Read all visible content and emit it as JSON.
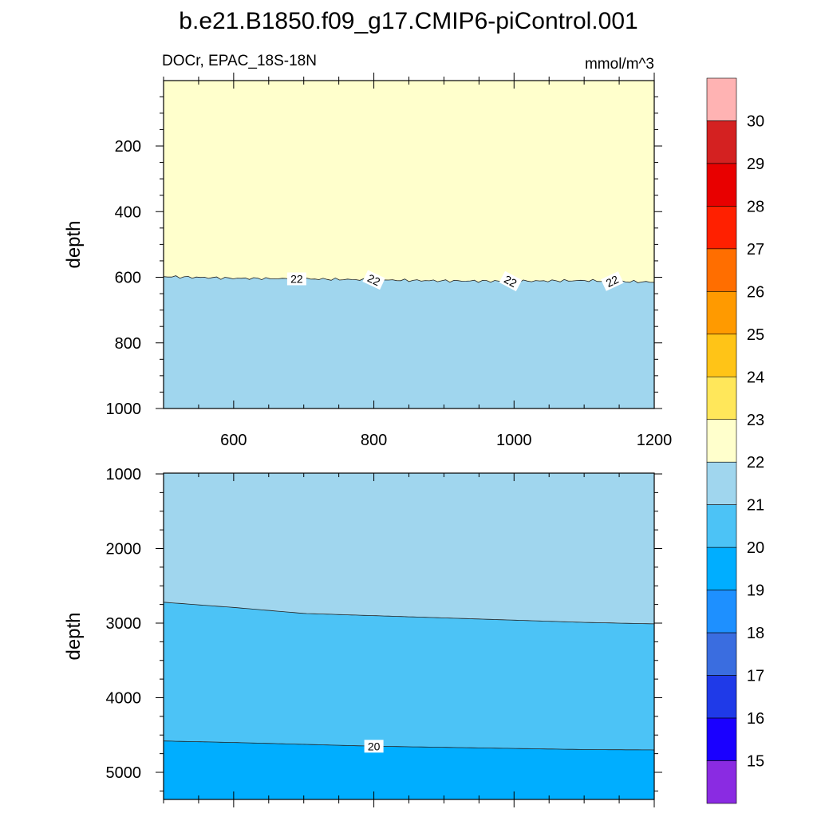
{
  "chart_data": {
    "type": "contour",
    "title": "b.e21.B1850.f09_g17.CMIP6-piControl.001",
    "subtitle_left": "DOCr, EPAC_18S-18N",
    "subtitle_right": "mmol/m^3",
    "colorbar": {
      "colors": [
        "#8a2be2",
        "#1a00ff",
        "#1f3ae8",
        "#3a6de0",
        "#1e90ff",
        "#00aeff",
        "#4cc3f6",
        "#a0d6ee",
        "#ffffcc",
        "#ffe75a",
        "#ffc417",
        "#ff9a00",
        "#ff6e00",
        "#ff2000",
        "#e80000",
        "#d42121",
        "#ffb3b3"
      ],
      "labels": [
        "15",
        "16",
        "17",
        "18",
        "19",
        "20",
        "21",
        "22",
        "23",
        "24",
        "25",
        "26",
        "27",
        "28",
        "29",
        "30"
      ]
    },
    "panels": [
      {
        "name": "upper",
        "ylabel": "depth",
        "xlim": [
          500,
          1200
        ],
        "ylim": [
          0,
          1000
        ],
        "y_inverted": true,
        "xticks": [
          "600",
          "800",
          "1000",
          "1200"
        ],
        "yticks": [
          "200",
          "400",
          "600",
          "800",
          "1000"
        ],
        "ytick_values": [
          200,
          400,
          600,
          800,
          1000
        ],
        "regions": [
          {
            "range": "22-23",
            "color": "#ffffcc"
          },
          {
            "range": "21-22",
            "color": "#a0d6ee"
          }
        ],
        "contours": [
          {
            "level": 22,
            "x": [
              500,
              600,
              700,
              800,
              900,
              1000,
              1100,
              1200
            ],
            "depth": [
              598,
              603,
              605,
              608,
              611,
              612,
              610,
              615
            ],
            "labels": [
              {
                "x": 690,
                "text": "22"
              },
              {
                "x": 800,
                "text": "22"
              },
              {
                "x": 995,
                "text": "22"
              },
              {
                "x": 1140,
                "text": "22"
              }
            ]
          }
        ]
      },
      {
        "name": "lower",
        "ylabel": "depth",
        "xlim": [
          500,
          1200
        ],
        "ylim": [
          1000,
          5350
        ],
        "y_inverted": true,
        "xticks": [
          "",
          "",
          "",
          ""
        ],
        "yticks": [
          "1000",
          "2000",
          "3000",
          "4000",
          "5000"
        ],
        "ytick_values": [
          1000,
          2000,
          3000,
          4000,
          5000
        ],
        "regions": [
          {
            "range": "21-22",
            "color": "#a0d6ee"
          },
          {
            "range": "20-21",
            "color": "#4cc3f6"
          },
          {
            "range": "19-20",
            "color": "#00aeff"
          }
        ],
        "contours": [
          {
            "level": 21,
            "x": [
              500,
              600,
              700,
              800,
              900,
              1000,
              1100,
              1200
            ],
            "depth": [
              2720,
              2790,
              2870,
              2900,
              2930,
              2960,
              2990,
              3010
            ],
            "labels": []
          },
          {
            "level": 20,
            "x": [
              500,
              600,
              700,
              800,
              900,
              1000,
              1100,
              1200
            ],
            "depth": [
              4580,
              4600,
              4625,
              4650,
              4665,
              4680,
              4695,
              4700
            ],
            "labels": [
              {
                "x": 800,
                "text": "20"
              }
            ]
          }
        ]
      }
    ]
  }
}
